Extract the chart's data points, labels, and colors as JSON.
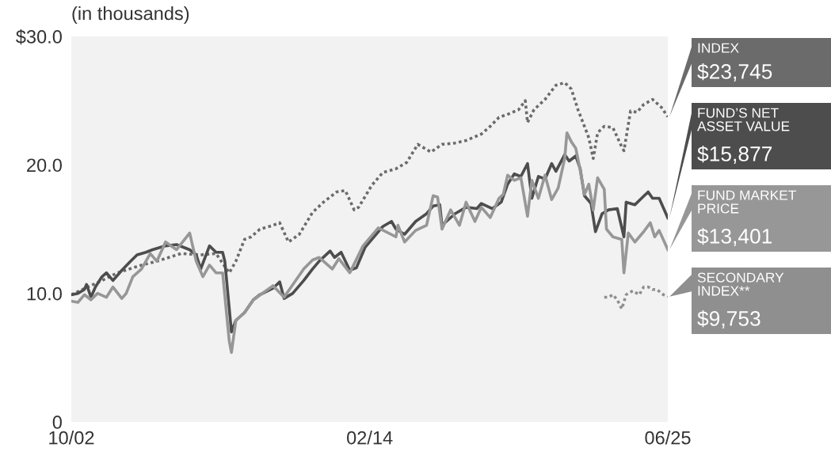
{
  "chart_data": {
    "type": "line",
    "ylabel": "(in thousands)",
    "xlim": [
      "2002-10",
      "2025-06"
    ],
    "xticks": [
      {
        "value": "2002-10",
        "label": "10/02"
      },
      {
        "value": "2014-02",
        "label": "02/14"
      },
      {
        "value": "2025-06",
        "label": "06/25"
      }
    ],
    "ylim": [
      0,
      30
    ],
    "yticks": [
      {
        "value": 0,
        "label": "0"
      },
      {
        "value": 10,
        "label": "10.0"
      },
      {
        "value": 20,
        "label": "20.0"
      },
      {
        "value": 30,
        "label": "$30.0"
      }
    ],
    "grid": false,
    "legend": "right",
    "marker": "none",
    "annotations": [
      "$23,745",
      "$15,877",
      "$13,401",
      "$9,753"
    ],
    "series": [
      {
        "name": "INDEX",
        "color": "#6b6b6b",
        "line_style": "dotted",
        "x": [
          "2002-10",
          "2003-12",
          "2004-07",
          "2005-06",
          "2006-01",
          "2006-12",
          "2007-09",
          "2008-04",
          "2008-10",
          "2009-01",
          "2009-05",
          "2009-08",
          "2009-12",
          "2010-06",
          "2010-09",
          "2011-01",
          "2011-06",
          "2011-12",
          "2012-05",
          "2012-11",
          "2013-03",
          "2013-07",
          "2013-09",
          "2014-03",
          "2014-08",
          "2015-02",
          "2015-07",
          "2015-12",
          "2016-06",
          "2016-11",
          "2017-05",
          "2017-10",
          "2018-05",
          "2018-09",
          "2019-01",
          "2019-06",
          "2019-10",
          "2020-01",
          "2020-02",
          "2020-05",
          "2020-10",
          "2021-03",
          "2021-07",
          "2021-10",
          "2022-01",
          "2022-04",
          "2022-06",
          "2022-08",
          "2022-10",
          "2023-01",
          "2023-05",
          "2023-09",
          "2023-10",
          "2024-01",
          "2024-04",
          "2024-07",
          "2024-11",
          "2025-03",
          "2025-06"
        ],
        "values": [
          9.9,
          11.0,
          11.6,
          12.2,
          12.5,
          13.1,
          13.0,
          13.1,
          11.6,
          12.5,
          14.2,
          14.4,
          15.0,
          15.3,
          15.5,
          14.0,
          14.6,
          16.3,
          17.1,
          17.9,
          18.0,
          16.5,
          16.7,
          18.4,
          19.4,
          19.7,
          20.2,
          21.6,
          21.0,
          21.6,
          21.7,
          21.9,
          22.4,
          23.0,
          23.7,
          24.0,
          24.3,
          25.0,
          23.3,
          24.3,
          25.1,
          26.2,
          26.4,
          25.9,
          24.3,
          23.0,
          22.1,
          20.5,
          22.5,
          23.0,
          22.9,
          21.4,
          21.1,
          24.2,
          24.1,
          24.7,
          25.1,
          24.5,
          23.745
        ]
      },
      {
        "name": "FUND’S NET\nASSET VALUE",
        "color": "#4d4d4d",
        "line_style": "solid",
        "x": [
          "2002-10",
          "2003-01",
          "2003-04",
          "2003-05",
          "2003-07",
          "2003-09",
          "2003-12",
          "2004-02",
          "2004-05",
          "2004-09",
          "2005-01",
          "2005-04",
          "2005-08",
          "2005-11",
          "2006-05",
          "2006-10",
          "2007-04",
          "2007-07",
          "2007-09",
          "2008-01",
          "2008-04",
          "2008-07",
          "2008-08",
          "2008-11",
          "2009-01",
          "2009-05",
          "2009-09",
          "2009-12",
          "2010-06",
          "2010-09",
          "2010-11",
          "2011-03",
          "2011-08",
          "2011-12",
          "2012-03",
          "2012-08",
          "2012-10",
          "2013-01",
          "2013-05",
          "2013-08",
          "2013-12",
          "2014-04",
          "2014-08",
          "2014-12",
          "2015-02",
          "2015-06",
          "2015-11",
          "2016-04",
          "2016-07",
          "2016-10",
          "2016-11",
          "2017-05",
          "2017-10",
          "2018-03",
          "2018-05",
          "2018-10",
          "2019-02",
          "2019-05",
          "2019-08",
          "2019-11",
          "2020-02",
          "2020-04",
          "2020-07",
          "2020-10",
          "2021-01",
          "2021-03",
          "2021-07",
          "2021-09",
          "2021-12",
          "2022-02",
          "2022-04",
          "2022-07",
          "2022-09",
          "2022-12",
          "2023-03",
          "2023-07",
          "2023-10",
          "2023-11",
          "2024-03",
          "2024-06",
          "2024-09",
          "2024-11",
          "2025-02",
          "2025-06"
        ],
        "values": [
          9.9,
          10.0,
          10.3,
          10.7,
          9.7,
          10.5,
          11.3,
          11.6,
          11.0,
          11.8,
          12.5,
          13.0,
          13.2,
          13.4,
          13.7,
          13.8,
          13.4,
          13.0,
          11.9,
          13.7,
          13.2,
          13.2,
          12.5,
          7.0,
          7.9,
          8.5,
          9.5,
          9.9,
          10.4,
          10.9,
          9.6,
          10.0,
          11.0,
          11.9,
          12.5,
          13.3,
          12.8,
          13.2,
          11.8,
          12.0,
          13.6,
          14.4,
          15.2,
          15.6,
          15.0,
          14.6,
          15.6,
          16.2,
          16.8,
          16.9,
          15.3,
          16.2,
          16.7,
          16.6,
          17.0,
          16.6,
          17.1,
          18.5,
          19.3,
          19.1,
          20.1,
          17.4,
          19.1,
          18.9,
          20.1,
          19.5,
          20.8,
          20.3,
          20.7,
          19.7,
          17.6,
          17.0,
          14.8,
          16.2,
          16.5,
          16.6,
          14.4,
          17.1,
          16.9,
          17.4,
          17.9,
          17.4,
          17.4,
          15.877
        ]
      },
      {
        "name": "FUND MARKET\nPRICE",
        "color": "#979797",
        "line_style": "solid",
        "x": [
          "2002-10",
          "2003-01",
          "2003-04",
          "2003-07",
          "2003-10",
          "2004-02",
          "2004-05",
          "2004-09",
          "2004-11",
          "2005-02",
          "2005-06",
          "2005-10",
          "2006-01",
          "2006-05",
          "2006-10",
          "2007-04",
          "2007-07",
          "2007-10",
          "2008-01",
          "2008-04",
          "2008-07",
          "2008-10",
          "2008-11",
          "2009-01",
          "2009-05",
          "2009-09",
          "2010-06",
          "2010-11",
          "2011-08",
          "2011-12",
          "2012-03",
          "2012-09",
          "2012-12",
          "2013-05",
          "2013-11",
          "2014-06",
          "2015-02",
          "2015-03",
          "2015-06",
          "2015-11",
          "2016-04",
          "2016-07",
          "2016-09",
          "2016-11",
          "2017-03",
          "2017-07",
          "2017-10",
          "2018-02",
          "2018-05",
          "2018-09",
          "2019-01",
          "2019-03",
          "2019-05",
          "2019-08",
          "2019-11",
          "2020-02",
          "2020-04",
          "2020-07",
          "2020-10",
          "2021-01",
          "2021-04",
          "2021-07",
          "2021-08",
          "2021-10",
          "2021-12",
          "2022-02",
          "2022-04",
          "2022-06",
          "2022-08",
          "2022-10",
          "2023-01",
          "2023-02",
          "2023-05",
          "2023-09",
          "2023-10",
          "2023-12",
          "2024-03",
          "2024-07",
          "2024-10",
          "2024-12",
          "2025-02",
          "2025-06"
        ],
        "values": [
          9.4,
          9.3,
          9.9,
          9.5,
          10.0,
          9.7,
          10.5,
          9.6,
          10.0,
          11.3,
          11.9,
          13.1,
          12.5,
          14.0,
          13.4,
          14.7,
          12.5,
          11.3,
          12.2,
          11.6,
          11.6,
          6.3,
          5.4,
          7.9,
          8.5,
          9.5,
          10.6,
          9.7,
          11.9,
          12.6,
          12.8,
          11.9,
          12.7,
          11.6,
          13.7,
          15.1,
          14.4,
          15.3,
          14.0,
          14.9,
          15.3,
          17.6,
          17.5,
          15.0,
          16.5,
          15.3,
          17.1,
          15.6,
          16.7,
          15.9,
          17.4,
          17.7,
          19.2,
          18.8,
          19.0,
          16.0,
          18.8,
          17.4,
          19.2,
          17.3,
          18.2,
          20.5,
          22.5,
          21.8,
          21.3,
          19.6,
          17.7,
          18.5,
          16.5,
          19.0,
          18.1,
          15.0,
          14.4,
          14.2,
          11.6,
          14.7,
          14.0,
          14.8,
          15.5,
          14.4,
          14.9,
          13.401
        ]
      },
      {
        "name": "SECONDARY\nINDEX**",
        "color": "#8f8f8f",
        "line_style": "dotted",
        "x": [
          "2023-01",
          "2023-03",
          "2023-05",
          "2023-07",
          "2023-09",
          "2023-11",
          "2024-02",
          "2024-05",
          "2024-07",
          "2024-09",
          "2024-11",
          "2025-01",
          "2025-04",
          "2025-06"
        ],
        "values": [
          9.7,
          9.7,
          9.9,
          9.5,
          8.8,
          9.9,
          10.2,
          9.9,
          10.5,
          10.5,
          10.3,
          10.3,
          9.9,
          9.753
        ]
      }
    ]
  }
}
